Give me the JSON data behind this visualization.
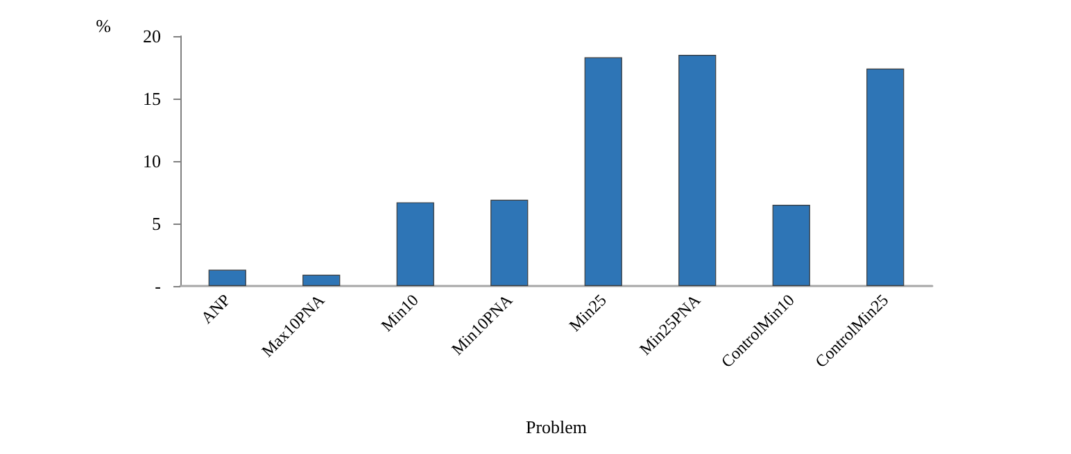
{
  "chart_data": {
    "type": "bar",
    "xlabel": "Problem",
    "ylabel": "%",
    "categories": [
      "ANP",
      "Max10PNA",
      "Min10",
      "Min10PNA",
      "Min25",
      "Min25PNA",
      "ControlMin10",
      "ControlMin25"
    ],
    "values": [
      1.3,
      0.9,
      6.7,
      6.9,
      18.3,
      18.5,
      6.5,
      17.4
    ],
    "color": "#2e75b6",
    "ylim": [
      0,
      20
    ],
    "yticks": [
      {
        "value": 0,
        "label": "-"
      },
      5,
      10,
      15,
      20
    ],
    "grid": false
  }
}
